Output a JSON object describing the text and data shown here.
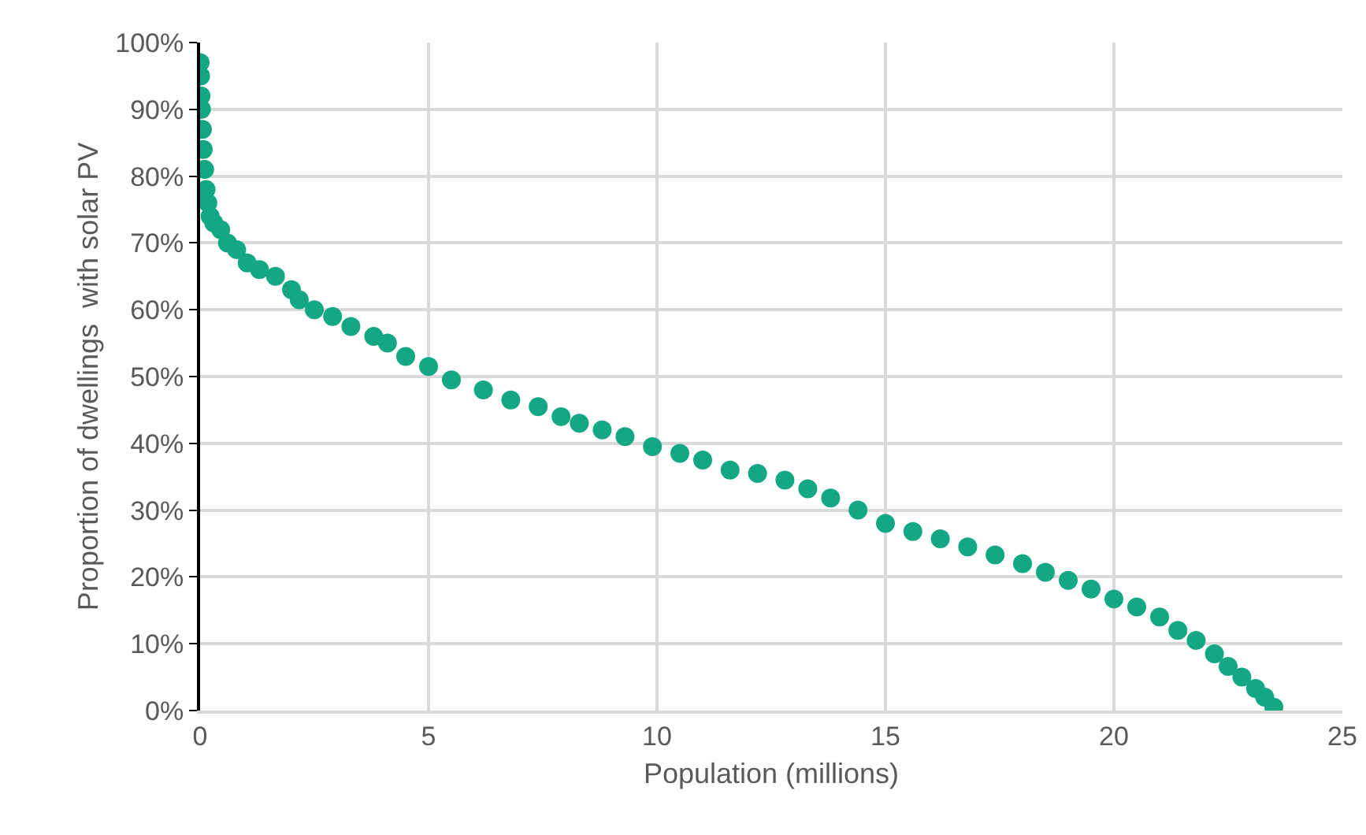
{
  "chart_data": {
    "type": "scatter",
    "xlabel": "Population (millions)",
    "ylabel": "Proportion of dwellings  with solar PV",
    "x": [
      0,
      0.01,
      0.02,
      0.03,
      0.05,
      0.07,
      0.1,
      0.13,
      0.17,
      0.22,
      0.3,
      0.45,
      0.6,
      0.8,
      1.03,
      1.3,
      1.65,
      2.0,
      2.17,
      2.5,
      2.9,
      3.3,
      3.8,
      4.1,
      4.5,
      5.0,
      5.5,
      6.2,
      6.8,
      7.4,
      7.9,
      8.3,
      8.8,
      9.3,
      9.9,
      10.5,
      11.0,
      11.6,
      12.2,
      12.8,
      13.3,
      13.8,
      14.4,
      15.0,
      15.6,
      16.2,
      16.8,
      17.4,
      18.0,
      18.5,
      19.0,
      19.5,
      20.0,
      20.5,
      21.0,
      21.4,
      21.8,
      22.2,
      22.5,
      22.8,
      23.1,
      23.3,
      23.5
    ],
    "series": [
      {
        "color": "#13a883",
        "values": [
          97,
          95,
          92,
          90,
          87,
          84,
          81,
          78,
          76,
          74,
          73,
          72,
          70,
          69,
          67,
          66,
          65,
          63,
          61.5,
          60,
          59,
          57.5,
          56,
          55,
          53,
          51.5,
          49.5,
          48,
          46.5,
          45.5,
          44,
          43,
          42,
          41,
          39.5,
          38.5,
          37.5,
          36,
          35.5,
          34.5,
          33.2,
          31.8,
          30,
          28,
          26.8,
          25.7,
          24.5,
          23.3,
          22,
          20.7,
          19.5,
          18.2,
          16.7,
          15.5,
          14,
          12,
          10.5,
          8.5,
          6.6,
          5,
          3.3,
          2,
          0.5
        ]
      }
    ],
    "xlim": [
      0,
      25
    ],
    "xticks": [
      0,
      5,
      10,
      15,
      20,
      25
    ],
    "ylim": [
      0,
      100
    ],
    "yticks": [
      {
        "value": 0,
        "label": "0%"
      },
      {
        "value": 10,
        "label": "10%"
      },
      {
        "value": 20,
        "label": "20%"
      },
      {
        "value": 30,
        "label": "30%"
      },
      {
        "value": 40,
        "label": "40%"
      },
      {
        "value": 50,
        "label": "50%"
      },
      {
        "value": 60,
        "label": "60%"
      },
      {
        "value": 70,
        "label": "70%"
      },
      {
        "value": 80,
        "label": "80%"
      },
      {
        "value": 90,
        "label": "90%"
      },
      {
        "value": 100,
        "label": "100%"
      }
    ],
    "grid": true,
    "marker": "circle"
  }
}
